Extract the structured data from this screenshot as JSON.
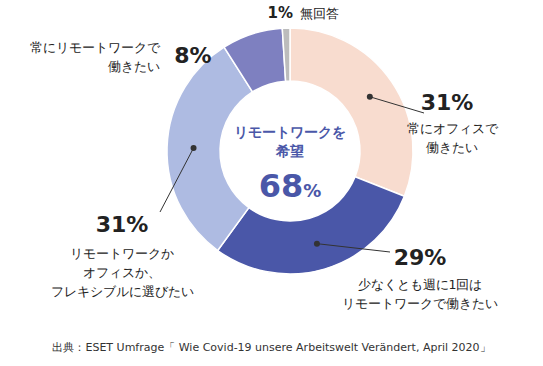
{
  "chart_data": {
    "type": "donut",
    "categories": [
      "常にオフィスで\n働きたい",
      "少なくとも週に1回は\nリモートワークで働きたい",
      "リモートワークか\nオフィスか、\nフレキシブルに選びたい",
      "常にリモートワークで\n働きたい",
      "無回答"
    ],
    "values": [
      31,
      29,
      31,
      8,
      1
    ],
    "value_labels": [
      "31%",
      "29%",
      "31%",
      "8%",
      "1%"
    ],
    "colors": [
      "#f8dccf",
      "#4a57a8",
      "#aebbe2",
      "#7e80c0",
      "#bcbcbc"
    ],
    "data_labels": true,
    "center_label": "リモートワークを\n希望",
    "center_value": 68,
    "center_value_label": "68%",
    "caption": "出典：ESET Umfrage「 Wie Covid-19 unsere Arbeitswelt Verändert, April 2020」"
  }
}
